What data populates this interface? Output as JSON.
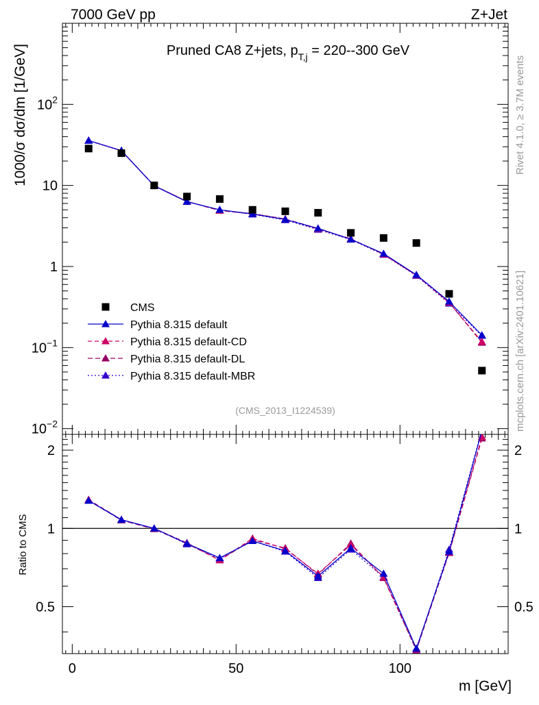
{
  "header": {
    "left": "7000 GeV pp",
    "right": "Z+Jet",
    "title_main": "Pruned CA8 Z+jets, p",
    "title_sub": "T,j",
    "title_tail": " = 220--300 GeV",
    "side_upper": "Rivet 4.1.0, ≥ 3.7M events",
    "side_lower": "mcplots.cern.ch [arXiv:2401.10621]",
    "analysis_id": "(CMS_2013_I1224539)"
  },
  "axes": {
    "ylabel_top": "1000/σ  dσ/dm [1/GeV]",
    "ylabel_ratio": "Ratio to CMS",
    "xlabel": "m [GeV]"
  },
  "colors": {
    "data": "#000000",
    "default": "#0000cc",
    "cd": "#cc0066",
    "dl": "#990066",
    "mbr": "#3300cc"
  },
  "chart_data": {
    "type": "scatter",
    "x": [
      5,
      15,
      25,
      35,
      45,
      55,
      65,
      75,
      85,
      95,
      105,
      115,
      125
    ],
    "xlim": [
      -3,
      133
    ],
    "ylim_top": [
      0.0085,
      1000
    ],
    "ylim_ratio": [
      0.33,
      2.3
    ],
    "x_ticks": [
      0,
      50,
      100
    ],
    "y_ticks_top": [
      {
        "v": 100,
        "base": "10",
        "exp": "2"
      },
      {
        "v": 10,
        "base": "10",
        "exp": ""
      },
      {
        "v": 1,
        "base": "1",
        "exp": ""
      },
      {
        "v": 0.1,
        "base": "10",
        "exp": "−1"
      },
      {
        "v": 0.01,
        "base": "10",
        "exp": "−2"
      }
    ],
    "y_ticks_ratio": [
      {
        "v": 0.5,
        "label": "0.5"
      },
      {
        "v": 1,
        "label": "1"
      },
      {
        "v": 2,
        "label": "2"
      }
    ],
    "legend": [
      {
        "key": "data",
        "label": "CMS",
        "style": "marker-square"
      },
      {
        "key": "default",
        "label": "Pythia 8.315 default",
        "style": "solid"
      },
      {
        "key": "cd",
        "label": "Pythia 8.315 default-CD",
        "style": "dashed"
      },
      {
        "key": "dl",
        "label": "Pythia 8.315 default-DL",
        "style": "dashed"
      },
      {
        "key": "mbr",
        "label": "Pythia 8.315 default-MBR",
        "style": "dotted"
      }
    ],
    "data": [
      28.5,
      25.0,
      10.0,
      7.3,
      6.8,
      5.0,
      4.8,
      4.6,
      2.6,
      2.25,
      1.95,
      0.46,
      0.052
    ],
    "series": [
      {
        "key": "default",
        "name": "Pythia 8.315 default",
        "values": [
          35.8,
          26.9,
          9.9,
          6.3,
          5.0,
          4.45,
          3.8,
          2.95,
          2.17,
          1.44,
          0.79,
          0.37,
          0.142
        ]
      },
      {
        "key": "cd",
        "name": "Pythia 8.315 default-CD",
        "values": [
          35.9,
          26.8,
          9.95,
          6.35,
          4.9,
          4.5,
          3.85,
          2.9,
          2.2,
          1.41,
          0.78,
          0.36,
          0.118
        ]
      },
      {
        "key": "dl",
        "name": "Pythia 8.315 default-DL",
        "values": [
          35.8,
          26.8,
          9.95,
          6.35,
          4.9,
          4.45,
          3.85,
          2.95,
          2.17,
          1.42,
          0.78,
          0.36,
          0.115
        ]
      },
      {
        "key": "mbr",
        "name": "Pythia 8.315 default-MBR",
        "values": [
          35.7,
          26.7,
          9.9,
          6.3,
          5.0,
          4.4,
          3.75,
          2.85,
          2.15,
          1.4,
          0.77,
          0.35,
          0.14
        ]
      }
    ],
    "ratio_series": [
      {
        "key": "default",
        "values": [
          1.28,
          1.08,
          1.0,
          0.875,
          0.77,
          0.895,
          0.82,
          0.655,
          0.84,
          0.67,
          0.345,
          0.815,
          2.38
        ]
      },
      {
        "key": "cd",
        "values": [
          1.29,
          1.08,
          1.0,
          0.88,
          0.755,
          0.915,
          0.835,
          0.67,
          0.865,
          0.65,
          0.345,
          0.81,
          2.25
        ]
      },
      {
        "key": "dl",
        "values": [
          1.28,
          1.075,
          0.995,
          0.875,
          0.755,
          0.905,
          0.84,
          0.665,
          0.875,
          0.645,
          0.34,
          0.805,
          2.22
        ]
      },
      {
        "key": "mbr",
        "values": [
          1.28,
          1.08,
          1.0,
          0.87,
          0.765,
          0.895,
          0.815,
          0.645,
          0.83,
          0.65,
          0.34,
          0.83,
          2.4
        ]
      }
    ]
  }
}
